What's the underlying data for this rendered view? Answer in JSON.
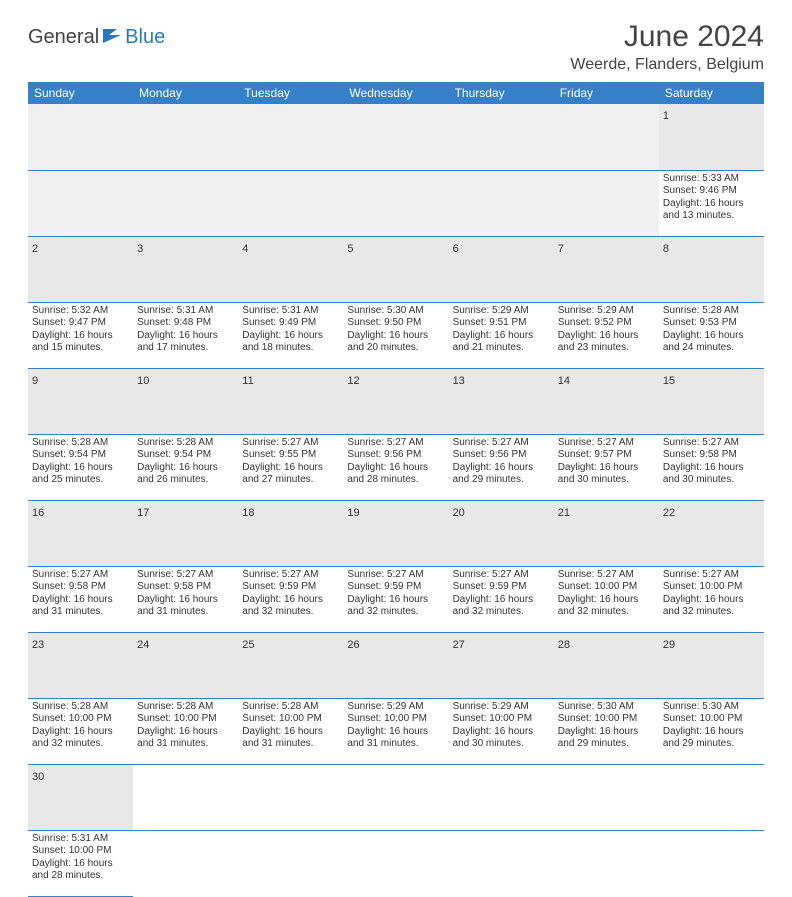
{
  "logo": {
    "part1": "General",
    "part2": "Blue"
  },
  "title": "June 2024",
  "location": "Weerde, Flanders, Belgium",
  "colors": {
    "header_bg": "#3481c8",
    "header_text": "#ffffff",
    "daynum_bg": "#e8e8e8",
    "border": "#3481c8",
    "logo_blue": "#2a77bd",
    "text": "#333333"
  },
  "weekdays": [
    "Sunday",
    "Monday",
    "Tuesday",
    "Wednesday",
    "Thursday",
    "Friday",
    "Saturday"
  ],
  "weeks": [
    [
      null,
      null,
      null,
      null,
      null,
      null,
      {
        "n": "1",
        "sr": "5:33 AM",
        "ss": "9:46 PM",
        "dl": "16 hours and 13 minutes."
      }
    ],
    [
      {
        "n": "2",
        "sr": "5:32 AM",
        "ss": "9:47 PM",
        "dl": "16 hours and 15 minutes."
      },
      {
        "n": "3",
        "sr": "5:31 AM",
        "ss": "9:48 PM",
        "dl": "16 hours and 17 minutes."
      },
      {
        "n": "4",
        "sr": "5:31 AM",
        "ss": "9:49 PM",
        "dl": "16 hours and 18 minutes."
      },
      {
        "n": "5",
        "sr": "5:30 AM",
        "ss": "9:50 PM",
        "dl": "16 hours and 20 minutes."
      },
      {
        "n": "6",
        "sr": "5:29 AM",
        "ss": "9:51 PM",
        "dl": "16 hours and 21 minutes."
      },
      {
        "n": "7",
        "sr": "5:29 AM",
        "ss": "9:52 PM",
        "dl": "16 hours and 23 minutes."
      },
      {
        "n": "8",
        "sr": "5:28 AM",
        "ss": "9:53 PM",
        "dl": "16 hours and 24 minutes."
      }
    ],
    [
      {
        "n": "9",
        "sr": "5:28 AM",
        "ss": "9:54 PM",
        "dl": "16 hours and 25 minutes."
      },
      {
        "n": "10",
        "sr": "5:28 AM",
        "ss": "9:54 PM",
        "dl": "16 hours and 26 minutes."
      },
      {
        "n": "11",
        "sr": "5:27 AM",
        "ss": "9:55 PM",
        "dl": "16 hours and 27 minutes."
      },
      {
        "n": "12",
        "sr": "5:27 AM",
        "ss": "9:56 PM",
        "dl": "16 hours and 28 minutes."
      },
      {
        "n": "13",
        "sr": "5:27 AM",
        "ss": "9:56 PM",
        "dl": "16 hours and 29 minutes."
      },
      {
        "n": "14",
        "sr": "5:27 AM",
        "ss": "9:57 PM",
        "dl": "16 hours and 30 minutes."
      },
      {
        "n": "15",
        "sr": "5:27 AM",
        "ss": "9:58 PM",
        "dl": "16 hours and 30 minutes."
      }
    ],
    [
      {
        "n": "16",
        "sr": "5:27 AM",
        "ss": "9:58 PM",
        "dl": "16 hours and 31 minutes."
      },
      {
        "n": "17",
        "sr": "5:27 AM",
        "ss": "9:58 PM",
        "dl": "16 hours and 31 minutes."
      },
      {
        "n": "18",
        "sr": "5:27 AM",
        "ss": "9:59 PM",
        "dl": "16 hours and 32 minutes."
      },
      {
        "n": "19",
        "sr": "5:27 AM",
        "ss": "9:59 PM",
        "dl": "16 hours and 32 minutes."
      },
      {
        "n": "20",
        "sr": "5:27 AM",
        "ss": "9:59 PM",
        "dl": "16 hours and 32 minutes."
      },
      {
        "n": "21",
        "sr": "5:27 AM",
        "ss": "10:00 PM",
        "dl": "16 hours and 32 minutes."
      },
      {
        "n": "22",
        "sr": "5:27 AM",
        "ss": "10:00 PM",
        "dl": "16 hours and 32 minutes."
      }
    ],
    [
      {
        "n": "23",
        "sr": "5:28 AM",
        "ss": "10:00 PM",
        "dl": "16 hours and 32 minutes."
      },
      {
        "n": "24",
        "sr": "5:28 AM",
        "ss": "10:00 PM",
        "dl": "16 hours and 31 minutes."
      },
      {
        "n": "25",
        "sr": "5:28 AM",
        "ss": "10:00 PM",
        "dl": "16 hours and 31 minutes."
      },
      {
        "n": "26",
        "sr": "5:29 AM",
        "ss": "10:00 PM",
        "dl": "16 hours and 31 minutes."
      },
      {
        "n": "27",
        "sr": "5:29 AM",
        "ss": "10:00 PM",
        "dl": "16 hours and 30 minutes."
      },
      {
        "n": "28",
        "sr": "5:30 AM",
        "ss": "10:00 PM",
        "dl": "16 hours and 29 minutes."
      },
      {
        "n": "29",
        "sr": "5:30 AM",
        "ss": "10:00 PM",
        "dl": "16 hours and 29 minutes."
      }
    ],
    [
      {
        "n": "30",
        "sr": "5:31 AM",
        "ss": "10:00 PM",
        "dl": "16 hours and 28 minutes."
      },
      null,
      null,
      null,
      null,
      null,
      null
    ]
  ],
  "labels": {
    "sunrise": "Sunrise:",
    "sunset": "Sunset:",
    "daylight": "Daylight:"
  }
}
